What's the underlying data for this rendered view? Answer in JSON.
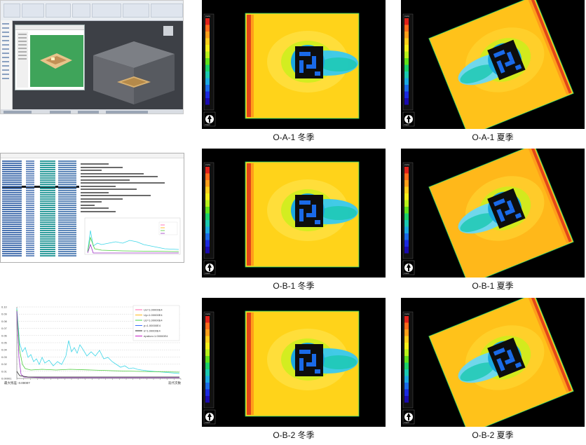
{
  "panels": [
    {
      "id": "oa1-winter",
      "caption": "O-A-1 冬季",
      "season": "winter",
      "rotation_deg": 0,
      "colors": {
        "outer": "#ffd31a",
        "inner": "#ffde3a",
        "wake": "#38c8f0",
        "building": "#0d0d0d",
        "edge": "#e2451a"
      }
    },
    {
      "id": "oa1-summer",
      "caption": "O-A-1 夏季",
      "season": "summer",
      "rotation_deg": -22,
      "colors": {
        "outer": "#ffc21a",
        "inner": "#ffcf2a",
        "wake": "#68d7f5",
        "building": "#0d0d0d",
        "edge": "#e2451a"
      }
    },
    {
      "id": "ob1-winter",
      "caption": "O-B-1 冬季",
      "season": "winter",
      "rotation_deg": 0,
      "colors": {
        "outer": "#ffd31a",
        "inner": "#ffde3a",
        "wake": "#38c8f0",
        "building": "#0d0d0d",
        "edge": "#e2451a"
      }
    },
    {
      "id": "ob1-summer",
      "caption": "O-B-1 夏季",
      "season": "summer",
      "rotation_deg": -22,
      "colors": {
        "outer": "#ffb81a",
        "inner": "#ffcb2a",
        "wake": "#68d7f5",
        "building": "#0d0d0d",
        "edge": "#e2451a"
      }
    },
    {
      "id": "ob2-winter",
      "caption": "O-B-2 冬季",
      "season": "winter",
      "rotation_deg": 0,
      "colors": {
        "outer": "#ffd31a",
        "inner": "#ffde3a",
        "wake": "#38c8f0",
        "building": "#0d0d0d",
        "edge": "#e2451a"
      }
    },
    {
      "id": "ob2-summer",
      "caption": "O-B-2 夏季",
      "season": "summer",
      "rotation_deg": -22,
      "colors": {
        "outer": "#ffc21a",
        "inner": "#ffd02a",
        "wake": "#68d7f5",
        "building": "#0d0d0d",
        "edge": "#e2451a"
      }
    }
  ],
  "legend": {
    "unit_label": "(m/s)",
    "north_label": "VIEW",
    "color_stops": [
      "#e0201a",
      "#ff6a1a",
      "#ff9e1a",
      "#ffcf1a",
      "#f5f01a",
      "#b8f01a",
      "#5fe01a",
      "#1ad06a",
      "#1ac8b0",
      "#1aa8e0",
      "#1a6ae8",
      "#1a2ae0",
      "#1a0ab0"
    ]
  },
  "convergence_chart": {
    "x_label": "迭代次数",
    "x_left_label": "最大残差: 0.00007",
    "y_ticks": [
      "0.10",
      "0.09",
      "0.08",
      "0.07",
      "0.06",
      "0.05",
      "0.04",
      "0.03",
      "0.02",
      "0.01",
      "0.00001"
    ],
    "legend_items": [
      {
        "label": "Ux=1.00000E4",
        "color": "#ff4fa0"
      },
      {
        "label": "Uy=1.00000E4",
        "color": "#ffb000"
      },
      {
        "label": "Uz=1.00000E4",
        "color": "#30d030"
      },
      {
        "label": "p=1.00000E4",
        "color": "#2060ff"
      },
      {
        "label": "k=1.00000E4",
        "color": "#101010"
      },
      {
        "label": "epsilon=1.00000E4",
        "color": "#c000c0"
      }
    ],
    "colors": {
      "cyan": "#3dd6e8",
      "green": "#4ccc3c",
      "purple": "#9b2fc4",
      "pink": "#ff55aa",
      "black": "#222222",
      "blue": "#3a6cf0"
    }
  }
}
